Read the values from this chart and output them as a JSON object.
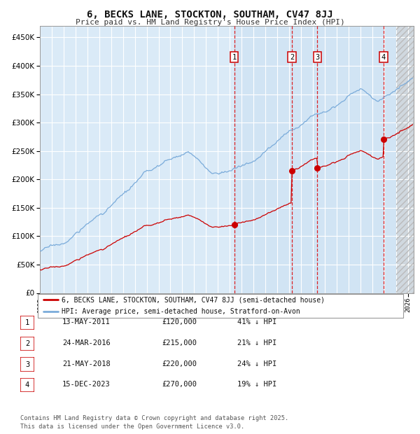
{
  "title": "6, BECKS LANE, STOCKTON, SOUTHAM, CV47 8JJ",
  "subtitle": "Price paid vs. HM Land Registry's House Price Index (HPI)",
  "hpi_color": "#7aabda",
  "price_color": "#cc0000",
  "bg_color": "#daeaf7",
  "ylim": [
    0,
    470000
  ],
  "yticks": [
    0,
    50000,
    100000,
    150000,
    200000,
    250000,
    300000,
    350000,
    400000,
    450000
  ],
  "ytick_labels": [
    "£0",
    "£50K",
    "£100K",
    "£150K",
    "£200K",
    "£250K",
    "£300K",
    "£350K",
    "£400K",
    "£450K"
  ],
  "xstart": 1995.0,
  "xend": 2026.5,
  "sale_dates_year": [
    2011.37,
    2016.23,
    2018.38,
    2023.96
  ],
  "sale_prices": [
    120000,
    215000,
    220000,
    270000
  ],
  "sale_labels": [
    "1",
    "2",
    "3",
    "4"
  ],
  "transaction_table": [
    {
      "label": "1",
      "date": "13-MAY-2011",
      "price": "£120,000",
      "pct": "41%",
      "dir": "↓"
    },
    {
      "label": "2",
      "date": "24-MAR-2016",
      "price": "£215,000",
      "pct": "21%",
      "dir": "↓"
    },
    {
      "label": "3",
      "date": "21-MAY-2018",
      "price": "£220,000",
      "pct": "24%",
      "dir": "↓"
    },
    {
      "label": "4",
      "date": "15-DEC-2023",
      "price": "£270,000",
      "pct": "19%",
      "dir": "↓"
    }
  ],
  "legend_entries": [
    "6, BECKS LANE, STOCKTON, SOUTHAM, CV47 8JJ (semi-detached house)",
    "HPI: Average price, semi-detached house, Stratford-on-Avon"
  ],
  "footer": "Contains HM Land Registry data © Crown copyright and database right 2025.\nThis data is licensed under the Open Government Licence v3.0."
}
